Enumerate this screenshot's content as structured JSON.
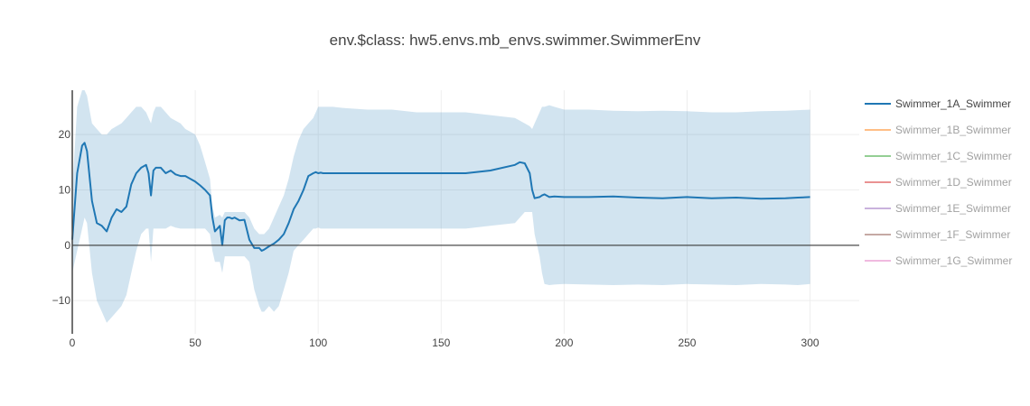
{
  "chart_data": {
    "type": "line",
    "title": "env.$class: hw5.envs.mb_envs.swimmer.SwimmerEnv",
    "xlabel": "",
    "ylabel": "",
    "xlim": [
      0,
      320
    ],
    "ylim": [
      -16,
      28
    ],
    "xticks": [
      0,
      50,
      100,
      150,
      200,
      250,
      300
    ],
    "yticks": [
      -10,
      0,
      10,
      20
    ],
    "grid": true,
    "legend_position": "right",
    "series": [
      {
        "name": "Swimmer_1A_Swimmer",
        "color": "#1f77b4",
        "band_color": "#1f77b4",
        "active": true,
        "x": [
          0,
          2,
          4,
          5,
          6,
          8,
          10,
          12,
          14,
          16,
          18,
          20,
          22,
          24,
          26,
          28,
          30,
          31,
          32,
          33,
          34,
          36,
          38,
          40,
          42,
          44,
          46,
          48,
          50,
          52,
          54,
          56,
          57,
          58,
          60,
          61,
          62,
          63,
          64,
          65,
          66,
          68,
          70,
          72,
          74,
          76,
          77,
          78,
          80,
          82,
          84,
          86,
          88,
          90,
          92,
          94,
          96,
          98,
          99,
          100,
          101,
          102,
          104,
          106,
          110,
          120,
          130,
          140,
          150,
          160,
          170,
          180,
          182,
          184,
          186,
          187,
          188,
          190,
          191,
          192,
          194,
          196,
          200,
          210,
          220,
          230,
          240,
          250,
          260,
          270,
          280,
          290,
          295,
          300
        ],
        "y": [
          1,
          13,
          18,
          18.5,
          17,
          8,
          4,
          3.5,
          2.5,
          5,
          6.5,
          6,
          7,
          11,
          13,
          14,
          14.5,
          13,
          9,
          13.5,
          14,
          14,
          13,
          13.5,
          12.8,
          12.5,
          12.5,
          12,
          11.5,
          10.8,
          10,
          9,
          5,
          2.5,
          3.5,
          0,
          4.5,
          5,
          5,
          4.8,
          5,
          4.5,
          4.6,
          1,
          -0.5,
          -0.5,
          -1,
          -0.8,
          -0.2,
          0.3,
          1,
          2,
          4,
          6.5,
          8,
          10,
          12.5,
          13,
          13.2,
          13,
          13.1,
          13,
          13,
          13,
          13,
          13,
          13,
          13,
          13,
          13,
          13.5,
          14.5,
          15,
          14.8,
          13,
          10,
          8.5,
          8.7,
          9,
          9.2,
          8.7,
          8.8,
          8.7,
          8.7,
          8.8,
          8.6,
          8.5,
          8.7,
          8.5,
          8.6,
          8.4,
          8.5,
          8.6,
          8.7
        ],
        "band_upper": [
          10,
          25,
          28,
          28,
          27,
          22,
          21,
          20,
          20,
          21,
          21.5,
          22,
          23,
          24,
          25,
          25,
          24,
          23,
          22,
          24,
          25,
          25,
          24,
          23,
          22.5,
          22,
          21,
          20.5,
          20,
          18,
          15,
          12,
          7,
          5,
          5.5,
          5,
          6,
          6,
          6,
          6,
          6,
          6,
          6,
          5,
          3,
          2,
          2,
          2,
          3,
          5,
          7,
          9,
          12,
          16,
          19,
          21,
          22,
          23,
          24,
          25,
          25,
          25,
          25,
          25,
          24.8,
          24.5,
          24.5,
          24,
          24,
          24,
          23.5,
          23,
          22.5,
          22,
          21.5,
          21,
          22,
          24,
          25,
          25,
          25.3,
          25,
          24.5,
          24.5,
          24.3,
          24.2,
          24.3,
          24.2,
          24,
          24,
          24.2,
          24.3,
          24.4,
          24.5
        ],
        "band_lower": [
          -5,
          -1,
          3,
          5,
          4,
          -5,
          -10,
          -12,
          -14,
          -13,
          -12,
          -11,
          -9,
          -5,
          -1,
          2,
          3,
          3,
          -3,
          3,
          3,
          3,
          3,
          3.5,
          3.2,
          3,
          3,
          3,
          3,
          3,
          3,
          2,
          -1,
          -3,
          -3,
          -5,
          -2,
          -2,
          -2,
          -2,
          -2,
          -2,
          -2,
          -3,
          -8,
          -11,
          -12,
          -12,
          -11,
          -12,
          -11,
          -8,
          -5,
          -1,
          0,
          1,
          2,
          3,
          3,
          3.2,
          3,
          3,
          3,
          3,
          3,
          3,
          3,
          3,
          3,
          3,
          3.5,
          4,
          5,
          6,
          6,
          6,
          2,
          -2,
          -5,
          -7,
          -7.2,
          -7.1,
          -7,
          -7.1,
          -7.2,
          -7.1,
          -7.2,
          -7,
          -7.1,
          -7.2,
          -7,
          -7.1,
          -7.2,
          -7
        ],
        "band_opacity": 0.2
      },
      {
        "name": "Swimmer_1B_Swimmer",
        "color": "#ff7f0e",
        "active": false
      },
      {
        "name": "Swimmer_1C_Swimmer",
        "color": "#2ca02c",
        "active": false
      },
      {
        "name": "Swimmer_1D_Swimmer",
        "color": "#d62728",
        "active": false
      },
      {
        "name": "Swimmer_1E_Swimmer",
        "color": "#9467bd",
        "active": false
      },
      {
        "name": "Swimmer_1F_Swimmer",
        "color": "#8c564b",
        "active": false
      },
      {
        "name": "Swimmer_1G_Swimmer",
        "color": "#e377c2",
        "active": false
      }
    ]
  },
  "colors": {
    "axis": "#444444",
    "zero_line": "#444444",
    "grid": "#eeeeee",
    "legend_inactive_text": "#444444",
    "legend_inactive_opacity": 0.5
  }
}
